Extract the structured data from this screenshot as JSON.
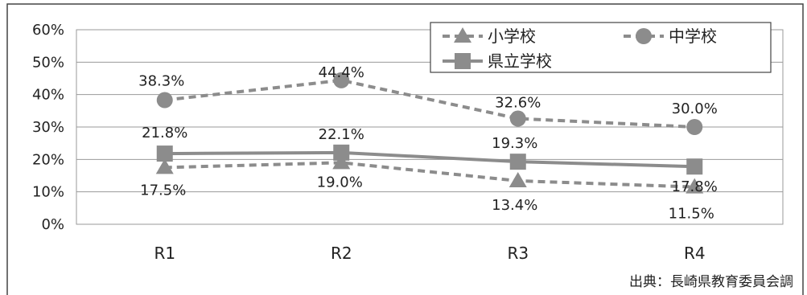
{
  "chart_data": {
    "type": "line",
    "categories": [
      "R1",
      "R2",
      "R3",
      "R4"
    ],
    "series": [
      {
        "name": "小学校",
        "values": [
          17.5,
          19.0,
          13.4,
          11.5
        ],
        "labels": [
          "17.5%",
          "19.0%",
          "13.4%",
          "11.5%"
        ],
        "marker": "triangle",
        "line": "dashed",
        "color": "#8c8c8c"
      },
      {
        "name": "中学校",
        "values": [
          38.3,
          44.4,
          32.6,
          30.0
        ],
        "labels": [
          "38.3%",
          "44.4%",
          "32.6%",
          "30.0%"
        ],
        "marker": "circle",
        "line": "dashed",
        "color": "#8c8c8c"
      },
      {
        "name": "県立学校",
        "values": [
          21.8,
          22.1,
          19.3,
          17.8
        ],
        "labels": [
          "21.8%",
          "22.1%",
          "19.3%",
          "17.8%"
        ],
        "marker": "square",
        "line": "solid",
        "color": "#8c8c8c"
      }
    ],
    "ylim": [
      0,
      60
    ],
    "yticks": [
      "0%",
      "10%",
      "20%",
      "30%",
      "40%",
      "50%",
      "60%"
    ],
    "grid": true,
    "legend": "top-right",
    "source": "出典：長崎県教育委員会調"
  }
}
